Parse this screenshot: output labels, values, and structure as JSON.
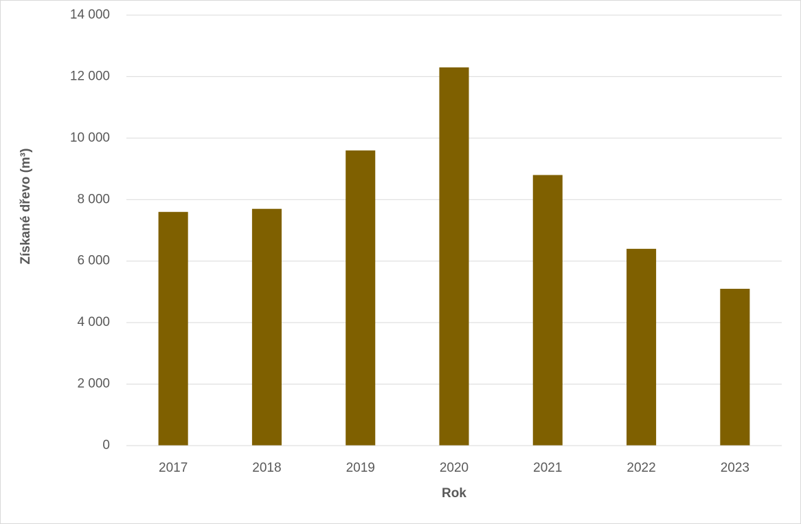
{
  "chart_data": {
    "type": "bar",
    "x_label": "Rok",
    "y_label": "Získané dřevo (m³)",
    "categories": [
      "2017",
      "2018",
      "2019",
      "2020",
      "2021",
      "2022",
      "2023"
    ],
    "values": [
      7600,
      7700,
      9600,
      12300,
      8800,
      6400,
      5100
    ],
    "color": "#7f6000",
    "ylim": [
      0,
      14000
    ],
    "yticks": [
      0,
      {
        "value": 2000,
        "label": "2 000"
      },
      {
        "value": 4000,
        "label": "4 000"
      },
      {
        "value": 6000,
        "label": "6 000"
      },
      {
        "value": 8000,
        "label": "8 000"
      },
      {
        "value": 10000,
        "label": "10 000"
      },
      {
        "value": 12000,
        "label": "12 000"
      },
      {
        "value": 14000,
        "label": "14 000"
      }
    ],
    "grid": true
  }
}
